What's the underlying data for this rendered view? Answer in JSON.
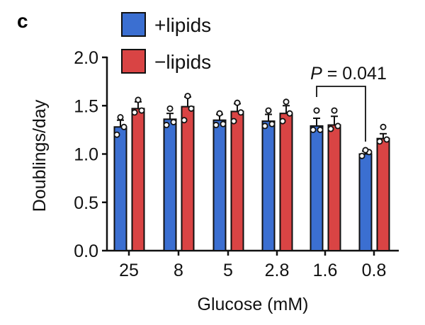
{
  "panel_label": "c",
  "chart_data": {
    "type": "bar",
    "title": "",
    "xlabel": "Glucose (mM)",
    "ylabel": "Doublings/day",
    "ylim": [
      0,
      2.0
    ],
    "yticks": [
      "0.0",
      "0.5",
      "1.0",
      "1.5",
      "2.0"
    ],
    "grid": false,
    "legend_placement": "top-left",
    "categories": [
      "25",
      "8",
      "5",
      "2.8",
      "1.6",
      "0.8"
    ],
    "series": [
      {
        "name": "+lipids",
        "color": "#3b6fd1",
        "values": [
          1.28,
          1.36,
          1.35,
          1.34,
          1.29,
          1.0
        ],
        "errors": [
          0.07,
          0.06,
          0.06,
          0.07,
          0.08,
          0.03
        ],
        "points": [
          [
            1.2,
            1.28,
            1.38
          ],
          [
            1.3,
            1.33,
            1.47
          ],
          [
            1.3,
            1.31,
            1.42
          ],
          [
            1.29,
            1.31,
            1.45
          ],
          [
            1.25,
            1.25,
            1.45
          ],
          [
            0.98,
            1.02,
            1.04
          ]
        ]
      },
      {
        "name": "−lipids",
        "color": "#d94444",
        "values": [
          1.47,
          1.49,
          1.44,
          1.42,
          1.3,
          1.16
        ],
        "errors": [
          0.07,
          0.1,
          0.08,
          0.08,
          0.09,
          0.05
        ],
        "points": [
          [
            1.43,
            1.45,
            1.56
          ],
          [
            1.35,
            1.47,
            1.6
          ],
          [
            1.34,
            1.43,
            1.53
          ],
          [
            1.34,
            1.42,
            1.54
          ],
          [
            1.26,
            1.29,
            1.45
          ],
          [
            1.13,
            1.15,
            1.28
          ]
        ]
      }
    ],
    "annotations": [
      {
        "text": "P = 0.041",
        "between": [
          "1.6 +lipids",
          "0.8 +lipids"
        ]
      }
    ]
  }
}
